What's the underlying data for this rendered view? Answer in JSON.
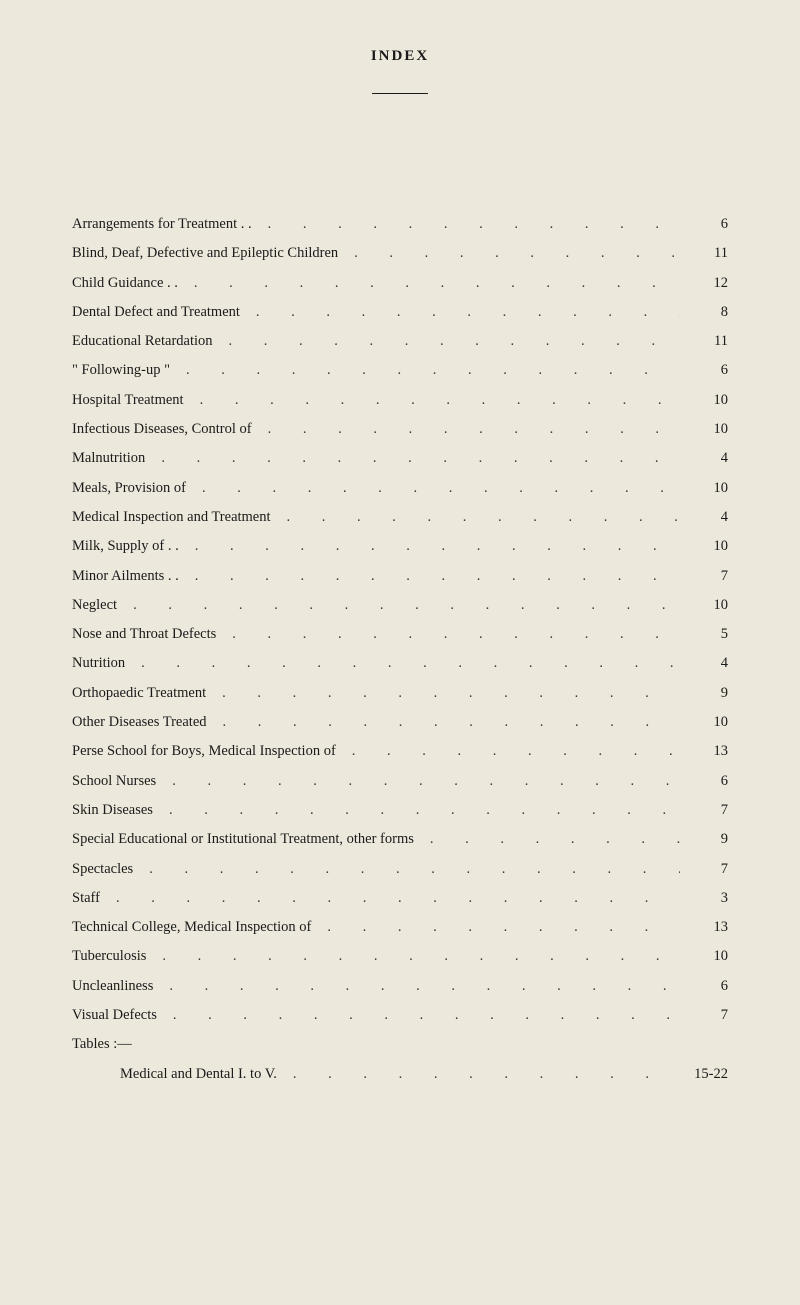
{
  "page": {
    "title": "INDEX",
    "background_color": "#ede8dc",
    "text_color": "#1a1a1a",
    "font_family": "Georgia, 'Times New Roman', serif",
    "title_fontsize": 15,
    "entry_fontsize": 14.5,
    "divider_width": 56
  },
  "entries": [
    {
      "label": "Arrangements for Treatment . .",
      "page": "6",
      "sub": false
    },
    {
      "label": "Blind, Deaf, Defective and Epileptic Children",
      "page": "11",
      "sub": false
    },
    {
      "label": "Child Guidance . .",
      "page": "12",
      "sub": false
    },
    {
      "label": "Dental Defect and Treatment",
      "page": "8",
      "sub": false
    },
    {
      "label": "Educational Retardation",
      "page": "11",
      "sub": false
    },
    {
      "label": "\" Following-up \"",
      "page": "6",
      "sub": false
    },
    {
      "label": "Hospital Treatment",
      "page": "10",
      "sub": false
    },
    {
      "label": "Infectious Diseases, Control of",
      "page": "10",
      "sub": false
    },
    {
      "label": "Malnutrition",
      "page": "4",
      "sub": false
    },
    {
      "label": "Meals, Provision of",
      "page": "10",
      "sub": false
    },
    {
      "label": "Medical Inspection and Treatment",
      "page": "4",
      "sub": false
    },
    {
      "label": "Milk, Supply of . .",
      "page": "10",
      "sub": false
    },
    {
      "label": "Minor Ailments . .",
      "page": "7",
      "sub": false
    },
    {
      "label": "Neglect",
      "page": "10",
      "sub": false
    },
    {
      "label": "Nose and Throat Defects",
      "page": "5",
      "sub": false
    },
    {
      "label": "Nutrition",
      "page": "4",
      "sub": false
    },
    {
      "label": "Orthopaedic Treatment",
      "page": "9",
      "sub": false
    },
    {
      "label": "Other Diseases Treated",
      "page": "10",
      "sub": false
    },
    {
      "label": "Perse School for Boys, Medical Inspection of",
      "page": "13",
      "sub": false
    },
    {
      "label": "School Nurses",
      "page": "6",
      "sub": false
    },
    {
      "label": "Skin Diseases",
      "page": "7",
      "sub": false
    },
    {
      "label": "Special Educational or Institutional Treatment, other forms",
      "page": "9",
      "sub": false
    },
    {
      "label": "Spectacles",
      "page": "7",
      "sub": false
    },
    {
      "label": "Staff",
      "page": "3",
      "sub": false
    },
    {
      "label": "Technical College, Medical Inspection of",
      "page": "13",
      "sub": false
    },
    {
      "label": "Tuberculosis",
      "page": "10",
      "sub": false
    },
    {
      "label": "Uncleanliness",
      "page": "6",
      "sub": false
    },
    {
      "label": "Visual Defects",
      "page": "7",
      "sub": false
    },
    {
      "label": "Tables :—",
      "page": "",
      "sub": false
    },
    {
      "label": "Medical and Dental I. to V.",
      "page": "15-22",
      "sub": true
    }
  ],
  "dot_char": ". ."
}
